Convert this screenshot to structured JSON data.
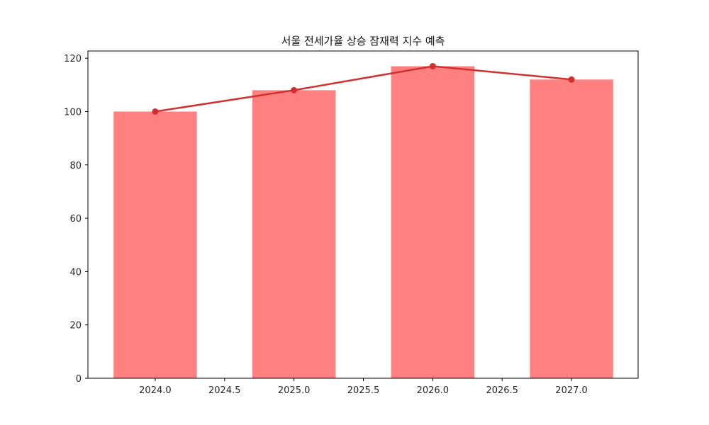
{
  "chart_data": {
    "type": "bar",
    "title": "서울 전세가율 상승 잠재력 지수 예측",
    "xlabel": "",
    "ylabel": "",
    "categories": [
      "2024",
      "2025",
      "2026",
      "2027"
    ],
    "x": [
      2024,
      2025,
      2026,
      2027
    ],
    "series": [
      {
        "name": "bar",
        "kind": "bar",
        "values": [
          100,
          108,
          117,
          112
        ],
        "color": "#ff8080",
        "bar_width": 0.6
      },
      {
        "name": "line",
        "kind": "line",
        "values": [
          100,
          108,
          117,
          112
        ],
        "color": "#d32f2f",
        "marker": "circle"
      }
    ],
    "xlim": [
      2023.515,
      2027.48
    ],
    "ylim": [
      0,
      122.7
    ],
    "xticks": [
      2024.0,
      2024.5,
      2025.0,
      2025.5,
      2026.0,
      2026.5,
      2027.0
    ],
    "xtick_labels": [
      "2024.0",
      "2024.5",
      "2025.0",
      "2025.5",
      "2026.0",
      "2026.5",
      "2027.0"
    ],
    "yticks": [
      0,
      20,
      40,
      60,
      80,
      100,
      120
    ],
    "ytick_labels": [
      "0",
      "20",
      "40",
      "60",
      "80",
      "100",
      "120"
    ],
    "grid": false,
    "legend": null
  }
}
